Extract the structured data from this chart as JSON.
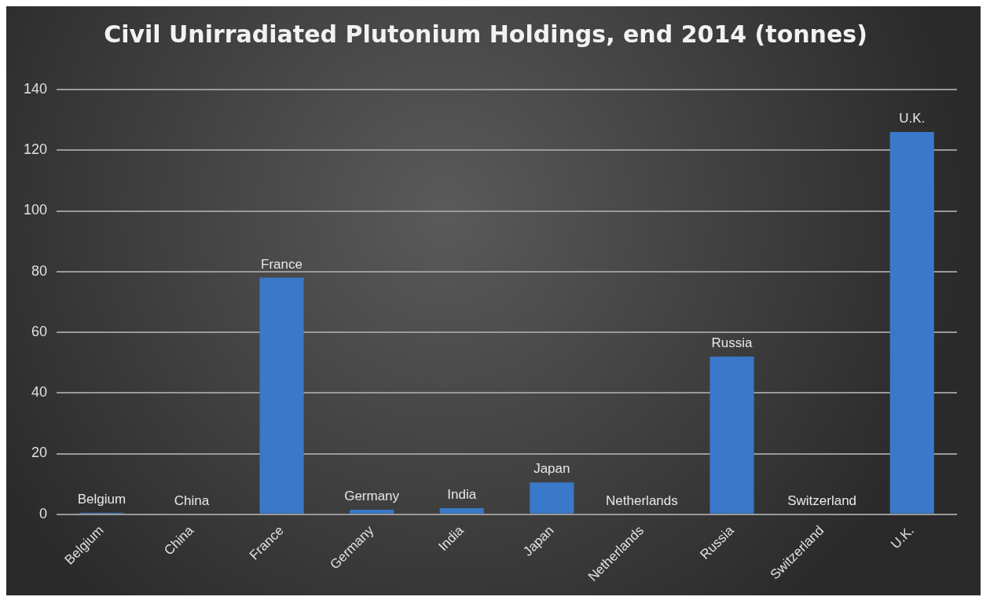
{
  "chart_data": {
    "type": "bar",
    "title": "Civil Unirradiated Plutonium Holdings, end 2014 (tonnes)",
    "categories": [
      "Belgium",
      "China",
      "France",
      "Germany",
      "India",
      "Japan",
      "Netherlands",
      "Russia",
      "Switzerland",
      "U.K."
    ],
    "values": [
      0.5,
      0,
      78,
      1.5,
      2,
      10.5,
      0,
      52,
      0,
      126
    ],
    "color": "#3a78c9",
    "ylim": [
      0,
      140
    ],
    "yticks": [
      0,
      20,
      40,
      60,
      80,
      100,
      120,
      140
    ],
    "grid": "y",
    "legend": false,
    "annotations": [
      {
        "text": "Belgium",
        "x": "Belgium",
        "y": 0.5
      },
      {
        "text": "China",
        "x": "China",
        "y": 0
      },
      {
        "text": "France",
        "x": "France",
        "y": 78
      },
      {
        "text": "Germany",
        "x": "Germany",
        "y": 1.5
      },
      {
        "text": "India",
        "x": "India",
        "y": 2
      },
      {
        "text": "Japan",
        "x": "Japan",
        "y": 10.5
      },
      {
        "text": "Netherlands",
        "x": "Netherlands",
        "y": 0
      },
      {
        "text": "Russia",
        "x": "Russia",
        "y": 52
      },
      {
        "text": "Switzerland",
        "x": "Switzerland",
        "y": 0
      },
      {
        "text": "U.K.",
        "x": "U.K.",
        "y": 126
      }
    ]
  }
}
